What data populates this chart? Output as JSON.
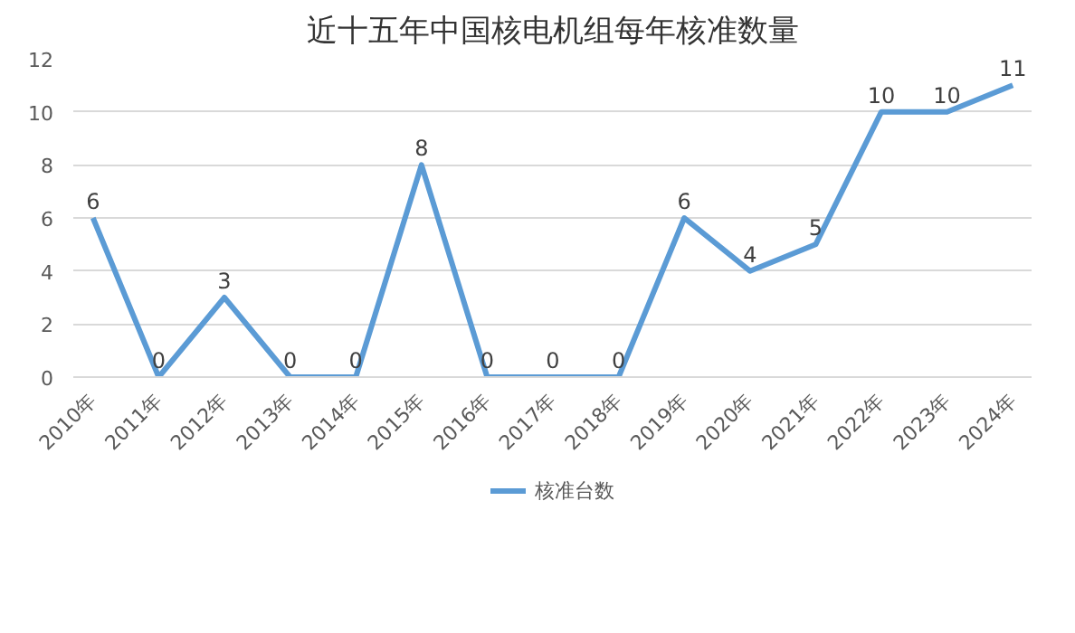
{
  "chart_data": {
    "type": "line",
    "title": "近十五年中国核电机组每年核准数量",
    "categories": [
      "2010年",
      "2011年",
      "2012年",
      "2013年",
      "2014年",
      "2015年",
      "2016年",
      "2017年",
      "2018年",
      "2019年",
      "2020年",
      "2021年",
      "2022年",
      "2023年",
      "2024年"
    ],
    "series": [
      {
        "name": "核准台数",
        "color": "#5b9bd5",
        "values": [
          6,
          0,
          3,
          0,
          0,
          8,
          0,
          0,
          0,
          6,
          4,
          5,
          10,
          10,
          11
        ]
      }
    ],
    "ylim": [
      0,
      12
    ],
    "yticks": [
      0,
      2,
      4,
      6,
      8,
      10,
      12
    ],
    "grid": "y",
    "legend": "bottom",
    "data_labels": true,
    "marker": "none",
    "line_style": "solid"
  }
}
